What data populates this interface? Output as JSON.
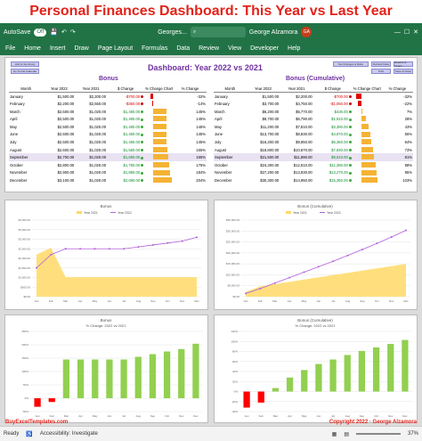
{
  "banner": "Personal Finances Dashboard: This Year vs Last Year",
  "titlebar": {
    "autosave": "AutoSave",
    "toggle": "Off",
    "filename": "Georges...",
    "user": "George Alzamora",
    "initials": "GA"
  },
  "menu": [
    "File",
    "Home",
    "Insert",
    "Draw",
    "Page Layout",
    "Formulas",
    "Data",
    "Review",
    "View",
    "Developer",
    "Help"
  ],
  "dashboard_title": "Dashboard: Year 2022 vs 2021",
  "buttons": {
    "left": [
      "Hub to Summary",
      "Go To Net Calendar"
    ],
    "right": [
      "Net Changes & Ratio",
      "Refresh Data",
      "Reports & Charts",
      "Print",
      "Save & Close"
    ]
  },
  "left_table": {
    "title": "Bonus",
    "headers": [
      "Month",
      "Year 2022",
      "Year 2021",
      "$ Change",
      "% Change Chart",
      "% Change"
    ],
    "rows": [
      {
        "m": "January",
        "a": "$1,500.00",
        "b": "$2,200.00",
        "c": "-$700.00",
        "p": "-32%",
        "v": -32
      },
      {
        "m": "February",
        "a": "$2,200.00",
        "b": "$2,550.00",
        "c": "-$350.00",
        "p": "-14%",
        "v": -14
      },
      {
        "m": "March",
        "a": "$2,500.00",
        "b": "$1,020.00",
        "c": "$1,480.00",
        "p": "145%",
        "v": 145
      },
      {
        "m": "April",
        "a": "$2,500.00",
        "b": "$1,020.00",
        "c": "$1,480.00",
        "p": "145%",
        "v": 145
      },
      {
        "m": "May",
        "a": "$2,500.00",
        "b": "$1,020.00",
        "c": "$1,480.00",
        "p": "145%",
        "v": 145
      },
      {
        "m": "June",
        "a": "$2,500.00",
        "b": "$1,020.00",
        "c": "$1,480.00",
        "p": "145%",
        "v": 145
      },
      {
        "m": "July",
        "a": "$2,500.00",
        "b": "$1,020.00",
        "c": "$1,480.00",
        "p": "145%",
        "v": 145
      },
      {
        "m": "August",
        "a": "$2,600.00",
        "b": "$1,020.00",
        "c": "$1,580.00",
        "p": "155%",
        "v": 155
      },
      {
        "m": "September",
        "a": "$2,700.00",
        "b": "$1,020.00",
        "c": "$1,680.00",
        "p": "165%",
        "v": 165
      },
      {
        "m": "October",
        "a": "$2,800.00",
        "b": "$1,020.00",
        "c": "$1,780.00",
        "p": "175%",
        "v": 175
      },
      {
        "m": "November",
        "a": "$2,900.00",
        "b": "$1,020.00",
        "c": "$1,880.00",
        "p": "184%",
        "v": 184
      },
      {
        "m": "December",
        "a": "$3,100.00",
        "b": "$1,020.00",
        "c": "$2,080.00",
        "p": "204%",
        "v": 204
      }
    ]
  },
  "right_table": {
    "title": "Bonus (Cumulative)",
    "headers": [
      "Month",
      "Year 2022",
      "Year 2021",
      "$ Change",
      "% Change Chart",
      "% Change"
    ],
    "rows": [
      {
        "m": "January",
        "a": "$1,500.00",
        "b": "$2,200.00",
        "c": "-$700.00",
        "p": "-32%",
        "v": -32
      },
      {
        "m": "February",
        "a": "$3,700.00",
        "b": "$4,750.00",
        "c": "-$1,050.00",
        "p": "-22%",
        "v": -22
      },
      {
        "m": "March",
        "a": "$6,200.00",
        "b": "$5,770.00",
        "c": "$430.00",
        "p": "7%",
        "v": 7
      },
      {
        "m": "April",
        "a": "$8,700.00",
        "b": "$6,790.00",
        "c": "$1,910.00",
        "p": "28%",
        "v": 28
      },
      {
        "m": "May",
        "a": "$11,200.00",
        "b": "$7,810.00",
        "c": "$3,390.00",
        "p": "43%",
        "v": 43
      },
      {
        "m": "June",
        "a": "$13,700.00",
        "b": "$8,830.00",
        "c": "$4,870.00",
        "p": "55%",
        "v": 55
      },
      {
        "m": "July",
        "a": "$16,200.00",
        "b": "$9,850.00",
        "c": "$6,350.00",
        "p": "64%",
        "v": 64
      },
      {
        "m": "August",
        "a": "$18,800.00",
        "b": "$10,870.00",
        "c": "$7,930.00",
        "p": "73%",
        "v": 73
      },
      {
        "m": "September",
        "a": "$21,500.00",
        "b": "$11,890.00",
        "c": "$9,610.00",
        "p": "81%",
        "v": 81
      },
      {
        "m": "October",
        "a": "$24,300.00",
        "b": "$12,910.00",
        "c": "$11,390.00",
        "p": "88%",
        "v": 88
      },
      {
        "m": "November",
        "a": "$27,200.00",
        "b": "$13,930.00",
        "c": "$13,270.00",
        "p": "95%",
        "v": 95
      },
      {
        "m": "December",
        "a": "$30,300.00",
        "b": "$14,950.00",
        "c": "$15,350.00",
        "p": "103%",
        "v": 103
      }
    ]
  },
  "chart_data": [
    {
      "type": "area",
      "title": "Bonus",
      "categories": [
        "Jan",
        "Feb",
        "Mar",
        "Apr",
        "May",
        "Jun",
        "Jul",
        "Aug",
        "Sep",
        "Oct",
        "Nov",
        "Dec"
      ],
      "series": [
        {
          "name": "Year 2021",
          "kind": "area",
          "color": "#ffd966",
          "values": [
            2200,
            2550,
            1020,
            1020,
            1020,
            1020,
            1020,
            1020,
            1020,
            1020,
            1020,
            1020
          ]
        },
        {
          "name": "Year 2022",
          "kind": "line",
          "color": "#b05fd9",
          "values": [
            1500,
            2200,
            2500,
            2500,
            2500,
            2500,
            2500,
            2600,
            2700,
            2800,
            2900,
            3100
          ]
        }
      ],
      "ylim": [
        0,
        4000
      ],
      "yticks": [
        "$0.00",
        "$500.00",
        "$1,000.00",
        "$1,500.00",
        "$2,000.00",
        "$2,500.00",
        "$3,000.00",
        "$3,500.00",
        "$4,000.00"
      ]
    },
    {
      "type": "area",
      "title": "Bonus (Cumulative)",
      "categories": [
        "Jan",
        "Feb",
        "Mar",
        "Apr",
        "May",
        "Jun",
        "Jul",
        "Aug",
        "Sep",
        "Oct",
        "Nov",
        "Dec"
      ],
      "series": [
        {
          "name": "Year 2021",
          "kind": "area",
          "color": "#ffd966",
          "values": [
            2200,
            4750,
            5770,
            6790,
            7810,
            8830,
            9850,
            10870,
            11890,
            12910,
            13930,
            14950
          ]
        },
        {
          "name": "Year 2022",
          "kind": "line",
          "color": "#b05fd9",
          "values": [
            1500,
            3700,
            6200,
            8700,
            11200,
            13700,
            16200,
            18800,
            21500,
            24300,
            27200,
            30300
          ]
        }
      ],
      "ylim": [
        0,
        35000
      ],
      "yticks": [
        "$0.00",
        "$5,000.00",
        "$10,000.00",
        "$15,000.00",
        "$20,000.00",
        "$25,000.00",
        "$30,000.00",
        "$35,000.00"
      ]
    },
    {
      "type": "bar",
      "title": "Bonus",
      "subtitle": "% Change: 2022 vs 2021",
      "categories": [
        "Jan",
        "Feb",
        "Mar",
        "Apr",
        "May",
        "Jun",
        "Jul",
        "Aug",
        "Sep",
        "Oct",
        "Nov",
        "Dec"
      ],
      "values": [
        -32,
        -14,
        145,
        145,
        145,
        145,
        145,
        155,
        165,
        175,
        184,
        204
      ],
      "ylim": [
        -50,
        250
      ],
      "yticks": [
        "-50%",
        "0%",
        "50%",
        "100%",
        "150%",
        "200%",
        "250%"
      ]
    },
    {
      "type": "bar",
      "title": "Bonus (Cumulative)",
      "subtitle": "% Change: 2022 vs 2021",
      "categories": [
        "Jan",
        "Feb",
        "Mar",
        "Apr",
        "May",
        "Jun",
        "Jul",
        "Aug",
        "Sep",
        "Oct",
        "Nov",
        "Dec"
      ],
      "values": [
        -32,
        -22,
        7,
        28,
        43,
        55,
        64,
        73,
        81,
        88,
        95,
        103
      ],
      "ylim": [
        -40,
        120
      ],
      "yticks": [
        "-40%",
        "-20%",
        "0%",
        "20%",
        "40%",
        "60%",
        "80%",
        "100%",
        "120%"
      ]
    }
  ],
  "legend_labels": {
    "a": "Year 2021",
    "b": "Year 2022"
  },
  "footer": {
    "left": "BuyExcelTemplates.com",
    "right": "Copyright 2022 · George Alzamora"
  },
  "status": {
    "ready": "Ready",
    "accessibility": "Accessibility: Investigate",
    "zoom": "37%"
  }
}
